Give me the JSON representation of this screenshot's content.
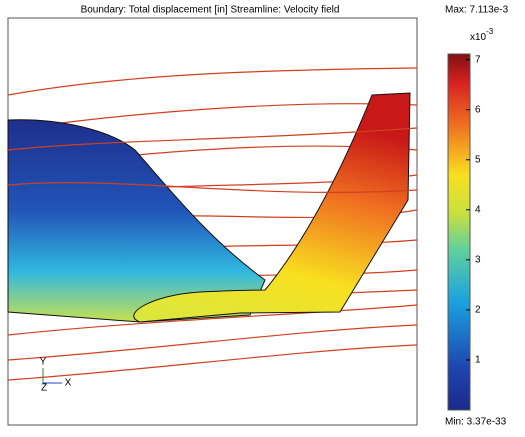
{
  "title": "Boundary: Total displacement [in]   Streamline: Velocity field",
  "colorbar": {
    "max": {
      "value": 0.007113,
      "label": "Max: 7.113e-3"
    },
    "min": {
      "value": 3.37e-33,
      "label": "Min: 3.37e-33"
    },
    "multiplier": "x10",
    "exponent": "-3",
    "ticks": [
      {
        "value": 0.001,
        "label": "1"
      },
      {
        "value": 0.002,
        "label": "2"
      },
      {
        "value": 0.003,
        "label": "3"
      },
      {
        "value": 0.004,
        "label": "4"
      },
      {
        "value": 0.005,
        "label": "5"
      },
      {
        "value": 0.006,
        "label": "6"
      },
      {
        "value": 0.007,
        "label": "7"
      }
    ]
  },
  "axes": {
    "y": "Y",
    "z": "Z",
    "x": "X"
  }
}
